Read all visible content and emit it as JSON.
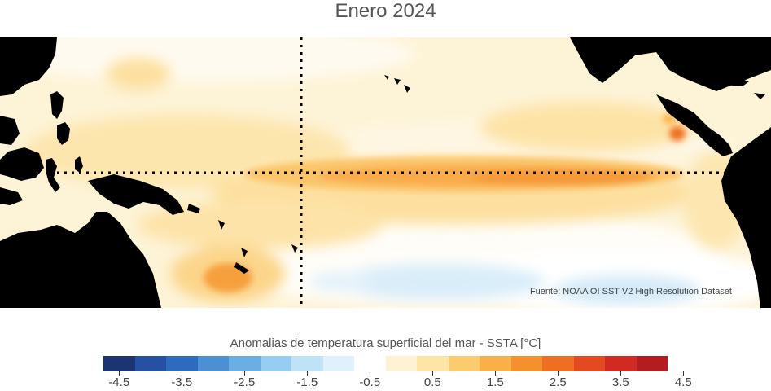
{
  "title": "Enero 2024",
  "source": "Fuente: NOAA OI SST V2 High Resolution Dataset",
  "colorbar": {
    "title": "Anomalias de temperatura superficial del mar - SSTA  [°C]",
    "colors": [
      "#1d3472",
      "#2650a2",
      "#2f6bbd",
      "#4d8fd3",
      "#6aaee3",
      "#96cdf0",
      "#bfe2f6",
      "#e0f1fb",
      "#ffffff",
      "#fdf3d2",
      "#fde5a7",
      "#fbcb70",
      "#f9b04a",
      "#f5902f",
      "#ee6e24",
      "#e34a22",
      "#d12a22",
      "#b31d22"
    ],
    "tick_labels": [
      "-4.5",
      "-3.5",
      "-2.5",
      "-1.5",
      "-0.5",
      "0.5",
      "1.5",
      "2.5",
      "3.5",
      "4.5"
    ]
  },
  "colors": {
    "land": "#000000",
    "background_anomaly": "#fdf2d4",
    "cold_anomaly": "#cfe8f8",
    "warm_anomaly": "#f9b04a",
    "hot_anomaly": "#ee6e24"
  }
}
